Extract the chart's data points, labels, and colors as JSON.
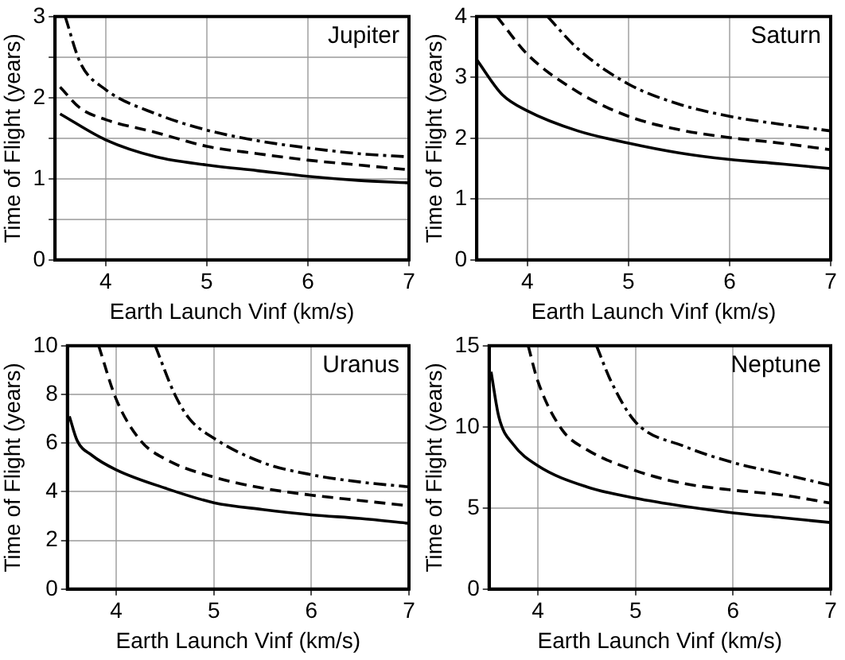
{
  "chart_data": [
    {
      "type": "line",
      "annotations": [
        "Jupiter"
      ],
      "xlabel": "Earth Launch Vinf (km/s)",
      "ylabel": "Time of Flight (years)",
      "xlim": [
        3.5,
        7
      ],
      "xticks": [
        4,
        5,
        6,
        7
      ],
      "ylim": [
        0,
        3
      ],
      "yticks": [
        0,
        {
          "value": 0.5,
          "label": null
        },
        1,
        {
          "value": 1.5,
          "label": null
        },
        2,
        {
          "value": 2.5,
          "label": null
        },
        3
      ],
      "grid": true,
      "legend": false,
      "marker": "none",
      "series": [
        {
          "color": "#000000",
          "line_style": "solid",
          "x": [
            3.55,
            4,
            4.5,
            5,
            5.5,
            6,
            6.5,
            7
          ],
          "values": [
            1.8,
            1.48,
            1.27,
            1.17,
            1.1,
            1.03,
            0.98,
            0.95
          ]
        },
        {
          "color": "#000000",
          "line_style": "dashed",
          "x": [
            3.55,
            3.75,
            4,
            4.5,
            5,
            5.5,
            6,
            6.5,
            7
          ],
          "values": [
            2.13,
            1.87,
            1.73,
            1.57,
            1.4,
            1.31,
            1.23,
            1.17,
            1.11
          ]
        },
        {
          "color": "#000000",
          "line_style": "dashdot",
          "x": [
            3.6,
            3.75,
            4,
            4.5,
            5,
            5.5,
            6,
            6.5,
            7
          ],
          "values": [
            3.0,
            2.43,
            2.1,
            1.8,
            1.6,
            1.47,
            1.38,
            1.31,
            1.27
          ]
        }
      ]
    },
    {
      "type": "line",
      "annotations": [
        "Saturn"
      ],
      "xlabel": "Earth Launch Vinf (km/s)",
      "ylabel": "Time of Flight (years)",
      "xlim": [
        3.5,
        7
      ],
      "xticks": [
        4,
        5,
        6,
        7
      ],
      "ylim": [
        0,
        4
      ],
      "yticks": [
        0,
        1,
        2,
        3,
        4
      ],
      "grid": true,
      "legend": false,
      "marker": "none",
      "series": [
        {
          "color": "#000000",
          "line_style": "solid",
          "x": [
            3.5,
            3.75,
            4,
            4.5,
            5,
            5.5,
            6,
            6.5,
            7
          ],
          "values": [
            3.29,
            2.72,
            2.45,
            2.12,
            1.92,
            1.76,
            1.65,
            1.58,
            1.5
          ]
        },
        {
          "color": "#000000",
          "line_style": "dashed",
          "x": [
            3.7,
            4,
            4.5,
            5,
            5.5,
            6,
            6.5,
            7
          ],
          "values": [
            4.0,
            3.38,
            2.76,
            2.36,
            2.14,
            2.01,
            1.92,
            1.81
          ]
        },
        {
          "color": "#000000",
          "line_style": "dashdot",
          "x": [
            4.2,
            4.5,
            5,
            5.5,
            6,
            6.5,
            7
          ],
          "values": [
            4.0,
            3.47,
            2.89,
            2.56,
            2.36,
            2.23,
            2.12
          ]
        }
      ]
    },
    {
      "type": "line",
      "annotations": [
        "Uranus"
      ],
      "xlabel": "Earth Launch Vinf (km/s)",
      "ylabel": "Time of Flight (years)",
      "xlim": [
        3.5,
        7
      ],
      "xticks": [
        4,
        5,
        6,
        7
      ],
      "ylim": [
        0,
        10
      ],
      "yticks": [
        0,
        2,
        4,
        6,
        8,
        10
      ],
      "grid": true,
      "legend": false,
      "marker": "none",
      "series": [
        {
          "color": "#000000",
          "line_style": "solid",
          "x": [
            3.52,
            3.6,
            3.75,
            4,
            4.5,
            5,
            5.5,
            6,
            6.5,
            7
          ],
          "values": [
            7.1,
            6.1,
            5.5,
            4.9,
            4.15,
            3.55,
            3.27,
            3.05,
            2.9,
            2.7
          ]
        },
        {
          "color": "#000000",
          "line_style": "dashed",
          "x": [
            3.82,
            4,
            4.25,
            4.5,
            5,
            5.5,
            6,
            6.5,
            7
          ],
          "values": [
            10,
            7.8,
            6.1,
            5.35,
            4.6,
            4.15,
            3.86,
            3.64,
            3.42
          ]
        },
        {
          "color": "#000000",
          "line_style": "dashdot",
          "x": [
            4.4,
            4.6,
            4.75,
            5,
            5.5,
            6,
            6.5,
            7
          ],
          "values": [
            10,
            8.0,
            7.0,
            6.2,
            5.2,
            4.7,
            4.4,
            4.2
          ]
        }
      ]
    },
    {
      "type": "line",
      "annotations": [
        "Neptune"
      ],
      "xlabel": "Earth Launch Vinf (km/s)",
      "ylabel": "Time of Flight (years)",
      "xlim": [
        3.5,
        7
      ],
      "xticks": [
        4,
        5,
        6,
        7
      ],
      "ylim": [
        0,
        15
      ],
      "yticks": [
        0,
        5,
        10,
        15
      ],
      "grid": true,
      "legend": false,
      "marker": "none",
      "series": [
        {
          "color": "#000000",
          "line_style": "solid",
          "x": [
            3.52,
            3.6,
            3.75,
            4,
            4.5,
            5,
            5.5,
            6,
            6.5,
            7
          ],
          "values": [
            13.4,
            10.6,
            8.9,
            7.6,
            6.3,
            5.6,
            5.1,
            4.7,
            4.4,
            4.1
          ]
        },
        {
          "color": "#000000",
          "line_style": "dashed",
          "x": [
            3.9,
            4,
            4.25,
            4.5,
            5,
            5.5,
            6,
            6.5,
            7
          ],
          "values": [
            15,
            12.8,
            9.8,
            8.6,
            7.3,
            6.5,
            6.1,
            5.8,
            5.3
          ]
        },
        {
          "color": "#000000",
          "line_style": "dashdot",
          "x": [
            4.6,
            4.75,
            5,
            5.5,
            6,
            6.5,
            7
          ],
          "values": [
            15,
            12.8,
            10.3,
            8.8,
            7.8,
            7.1,
            6.4
          ]
        }
      ]
    }
  ]
}
